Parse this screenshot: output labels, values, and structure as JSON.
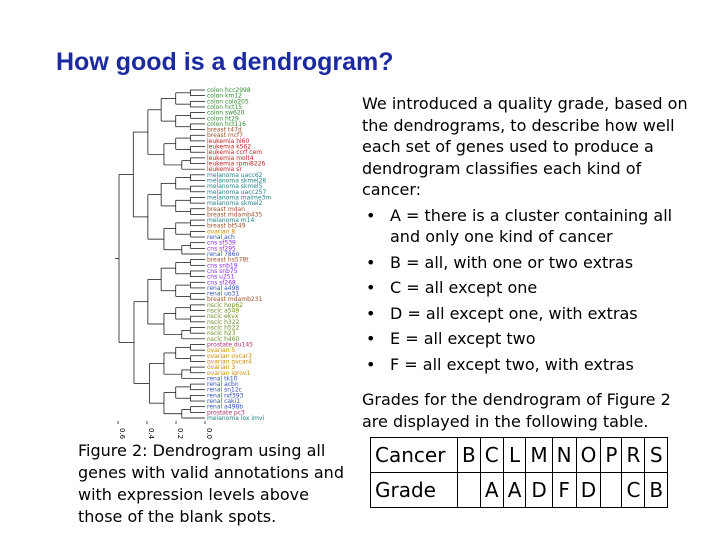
{
  "title": "How good is a dendrogram?",
  "figure": {
    "leaves": [
      {
        "label": "colon hcc2998",
        "color": "#2e8b2e"
      },
      {
        "label": "colon km12",
        "color": "#2e8b2e"
      },
      {
        "label": "colon colo205",
        "color": "#2e8b2e"
      },
      {
        "label": "colon hct15",
        "color": "#2e8b2e"
      },
      {
        "label": "colon sw620",
        "color": "#2e8b2e"
      },
      {
        "label": "colon ht29",
        "color": "#2e8b2e"
      },
      {
        "label": "colon hct116",
        "color": "#2e8b2e"
      },
      {
        "label": "breast t47d",
        "color": "#a0522d"
      },
      {
        "label": "breast mcf7",
        "color": "#a0522d"
      },
      {
        "label": "leukemia hl60",
        "color": "#c02020"
      },
      {
        "label": "leukemia k562",
        "color": "#c02020"
      },
      {
        "label": "leukemia ccrf cem",
        "color": "#c02020"
      },
      {
        "label": "leukemia molt4",
        "color": "#c02020"
      },
      {
        "label": "leukemia rpmi8226",
        "color": "#c02020"
      },
      {
        "label": "leukemia sr",
        "color": "#c02020"
      },
      {
        "label": "melanoma uacc62",
        "color": "#20808a"
      },
      {
        "label": "melanoma skmel28",
        "color": "#20808a"
      },
      {
        "label": "melanoma skmel5",
        "color": "#20808a"
      },
      {
        "label": "melanoma uacc257",
        "color": "#20808a"
      },
      {
        "label": "melanoma malme3m",
        "color": "#20808a"
      },
      {
        "label": "melanoma skmel2",
        "color": "#20808a"
      },
      {
        "label": "breast mdan",
        "color": "#a0522d"
      },
      {
        "label": "breast mdamb435",
        "color": "#a0522d"
      },
      {
        "label": "melanoma m14",
        "color": "#20808a"
      },
      {
        "label": "breast bt549",
        "color": "#a0522d"
      },
      {
        "label": "ovarian 8",
        "color": "#d08a00"
      },
      {
        "label": "renal ach",
        "color": "#3050c0"
      },
      {
        "label": "cns sf539",
        "color": "#8a2be2"
      },
      {
        "label": "cns sf295",
        "color": "#8a2be2"
      },
      {
        "label": "renal 786o",
        "color": "#3050c0"
      },
      {
        "label": "breast hs578t",
        "color": "#a0522d"
      },
      {
        "label": "cns snb19",
        "color": "#8a2be2"
      },
      {
        "label": "cns snb75",
        "color": "#8a2be2"
      },
      {
        "label": "cns u251",
        "color": "#8a2be2"
      },
      {
        "label": "cns sf268",
        "color": "#8a2be2"
      },
      {
        "label": "renal a498",
        "color": "#3050c0"
      },
      {
        "label": "renal uo31",
        "color": "#3050c0"
      },
      {
        "label": "breast mdamb231",
        "color": "#a0522d"
      },
      {
        "label": "nsclc hop62",
        "color": "#6b8e23"
      },
      {
        "label": "nsclc a549",
        "color": "#6b8e23"
      },
      {
        "label": "nsclc ekvx",
        "color": "#6b8e23"
      },
      {
        "label": "nsclc h322",
        "color": "#6b8e23"
      },
      {
        "label": "nsclc h522",
        "color": "#6b8e23"
      },
      {
        "label": "nsclc h23",
        "color": "#6b8e23"
      },
      {
        "label": "nsclc h460",
        "color": "#6b8e23"
      },
      {
        "label": "prostate du145",
        "color": "#b03070"
      },
      {
        "label": "ovarian 5",
        "color": "#d08a00"
      },
      {
        "label": "ovarian ovcar3",
        "color": "#d08a00"
      },
      {
        "label": "ovarian ovcar4",
        "color": "#d08a00"
      },
      {
        "label": "ovarian 3",
        "color": "#d08a00"
      },
      {
        "label": "ovarian igrov1",
        "color": "#d08a00"
      },
      {
        "label": "renal tk10",
        "color": "#3050c0"
      },
      {
        "label": "renal acbn",
        "color": "#3050c0"
      },
      {
        "label": "renal sn12c",
        "color": "#3050c0"
      },
      {
        "label": "renal rxf393",
        "color": "#3050c0"
      },
      {
        "label": "renal caki1",
        "color": "#3050c0"
      },
      {
        "label": "renal a498b",
        "color": "#3050c0"
      },
      {
        "label": "prostate pc3",
        "color": "#b03070"
      },
      {
        "label": "melanoma lox imvi",
        "color": "#20808a"
      }
    ],
    "axis_ticks": [
      {
        "value": 0.6,
        "label": "0.6"
      },
      {
        "value": 0.4,
        "label": "0.4"
      },
      {
        "value": 0.2,
        "label": "0.2"
      },
      {
        "value": 0,
        "label": "0.0"
      }
    ],
    "caption": "Figure 2: Dendrogram using all genes with valid annotations and with expression levels above those of the blank spots."
  },
  "body": {
    "intro": "We introduced a quality grade, based on the dendrograms, to describe how well each  set of genes used to produce a dendrogram classifies each kind of cancer:",
    "bullets": [
      "A = there is a cluster containing all and only one kind of cancer",
      "B = all, with one or two extras",
      "C = all except one",
      "D = all except one, with extras",
      "E = all except two",
      "F = all except two, with extras"
    ],
    "outro": "Grades for the dendrogram of Figure 2 are displayed in the following table."
  },
  "table": {
    "rows": [
      [
        "Cancer",
        "B",
        "C",
        "L",
        "M",
        "N",
        "O",
        "P",
        "R",
        "S"
      ],
      [
        "Grade",
        null,
        "A",
        "A",
        "D",
        "F",
        "D",
        null,
        "C",
        "B"
      ]
    ]
  }
}
